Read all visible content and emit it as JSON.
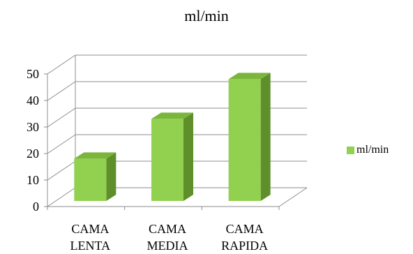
{
  "chart_data": {
    "type": "bar",
    "title": "ml/min",
    "categories": [
      [
        "CAMA",
        "LENTA"
      ],
      [
        "CAMA",
        "MEDIA"
      ],
      [
        "CAMA",
        "RAPIDA"
      ]
    ],
    "series": [
      {
        "name": "ml/min",
        "values": [
          17,
          32,
          47
        ]
      }
    ],
    "y_ticks": [
      "0",
      "10",
      "20",
      "30",
      "40",
      "50"
    ],
    "ylim": [
      0,
      50
    ],
    "grid": true,
    "legend_position": "right",
    "three_d": true,
    "colors": {
      "front": "#92d050",
      "top": "#7ab53c",
      "side": "#5e8f2a"
    }
  }
}
